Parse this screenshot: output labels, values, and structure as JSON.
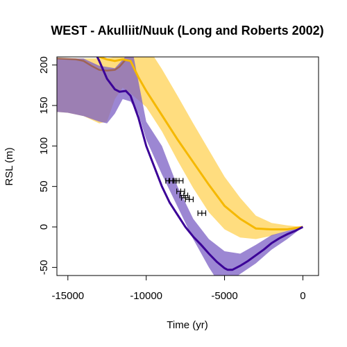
{
  "chart_data": {
    "type": "line",
    "title": "WEST - Akulliit/Nuuk (Long and Roberts 2002)",
    "xlabel": "Time (yr)",
    "ylabel": "RSL (m)",
    "xlim": [
      -15700,
      1000
    ],
    "ylim": [
      -60,
      210
    ],
    "x_ticks": [
      -15000,
      -10000,
      -5000,
      0
    ],
    "x_tick_labels": [
      "-15000",
      "-10000",
      "-5000",
      "0"
    ],
    "y_ticks": [
      -50,
      0,
      50,
      100,
      150,
      200
    ],
    "y_tick_labels": [
      "-50",
      "0",
      "50",
      "100",
      "150",
      "200"
    ],
    "grid": false,
    "legend": "none",
    "colors": {
      "purple_band": "#7b5fc4",
      "purple_line": "#3b0097",
      "yellow_band": "#ffc629",
      "yellow_line": "#f5b800",
      "overlap_band": "#9a6a8a",
      "overlap_line": "#a05c3c",
      "markers": "#000000"
    },
    "series": [
      {
        "role": "purple",
        "band_upper": [
          [
            -15700,
            208
          ],
          [
            -14000,
            208
          ],
          [
            -13000,
            199
          ],
          [
            -12000,
            196
          ],
          [
            -11200,
            213
          ],
          [
            -11000,
            230
          ],
          [
            -10000,
            130
          ],
          [
            -9000,
            100
          ],
          [
            -8000,
            50
          ],
          [
            -7000,
            10
          ],
          [
            -6000,
            -15
          ],
          [
            -5000,
            -30
          ],
          [
            -4000,
            -33
          ],
          [
            -3000,
            -22
          ],
          [
            -2000,
            -10
          ],
          [
            -1000,
            -5
          ],
          [
            0,
            0
          ]
        ],
        "band_lower": [
          [
            0,
            0
          ],
          [
            -1000,
            -15
          ],
          [
            -2000,
            -28
          ],
          [
            -3000,
            -45
          ],
          [
            -4000,
            -58
          ],
          [
            -4500,
            -65
          ],
          [
            -5000,
            -70
          ],
          [
            -5500,
            -65
          ],
          [
            -6000,
            -50
          ],
          [
            -7000,
            -15
          ],
          [
            -8000,
            25
          ],
          [
            -9000,
            65
          ],
          [
            -10000,
            108
          ],
          [
            -10500,
            140
          ],
          [
            -11000,
            155
          ],
          [
            -11500,
            158
          ],
          [
            -12000,
            140
          ],
          [
            -12500,
            128
          ],
          [
            -13000,
            130
          ],
          [
            -14000,
            137
          ],
          [
            -15000,
            141
          ],
          [
            -15700,
            142
          ]
        ],
        "line": [
          [
            -13500,
            225
          ],
          [
            -13000,
            205
          ],
          [
            -12500,
            183
          ],
          [
            -12000,
            170
          ],
          [
            -11700,
            167
          ],
          [
            -11300,
            168
          ],
          [
            -11000,
            162
          ],
          [
            -10500,
            135
          ],
          [
            -10000,
            100
          ],
          [
            -9500,
            75
          ],
          [
            -9000,
            50
          ],
          [
            -8500,
            30
          ],
          [
            -8000,
            15
          ],
          [
            -7500,
            0
          ],
          [
            -7000,
            -12
          ],
          [
            -6500,
            -22
          ],
          [
            -6000,
            -33
          ],
          [
            -5500,
            -43
          ],
          [
            -5000,
            -51
          ],
          [
            -4800,
            -53
          ],
          [
            -4500,
            -53
          ],
          [
            -4000,
            -48
          ],
          [
            -3500,
            -42
          ],
          [
            -3000,
            -35
          ],
          [
            -2500,
            -28
          ],
          [
            -2000,
            -20
          ],
          [
            -1500,
            -14
          ],
          [
            -1000,
            -9
          ],
          [
            -500,
            -5
          ],
          [
            0,
            0
          ]
        ]
      },
      {
        "role": "yellow",
        "band_upper": [
          [
            -15700,
            208
          ],
          [
            -15000,
            208
          ],
          [
            -14000,
            208
          ],
          [
            -12500,
            208
          ],
          [
            -11500,
            212
          ],
          [
            -10500,
            225
          ],
          [
            -9500,
            210
          ],
          [
            -9000,
            195
          ],
          [
            -8000,
            162
          ],
          [
            -7000,
            128
          ],
          [
            -6000,
            95
          ],
          [
            -5000,
            62
          ],
          [
            -4000,
            36
          ],
          [
            -3000,
            14
          ],
          [
            -2000,
            5
          ],
          [
            -1000,
            2
          ],
          [
            0,
            0
          ]
        ],
        "band_lower": [
          [
            0,
            0
          ],
          [
            -1000,
            -5
          ],
          [
            -2000,
            -11
          ],
          [
            -3000,
            -15
          ],
          [
            -4000,
            -13
          ],
          [
            -5000,
            -3
          ],
          [
            -6000,
            18
          ],
          [
            -7000,
            48
          ],
          [
            -8000,
            82
          ],
          [
            -9000,
            118
          ],
          [
            -10000,
            148
          ],
          [
            -11000,
            165
          ],
          [
            -11500,
            172
          ],
          [
            -12000,
            158
          ],
          [
            -12500,
            130
          ],
          [
            -13000,
            128
          ],
          [
            -14000,
            137
          ],
          [
            -15000,
            141
          ],
          [
            -15700,
            142
          ]
        ],
        "line": [
          [
            -13000,
            210
          ],
          [
            -12500,
            207
          ],
          [
            -12000,
            205
          ],
          [
            -11500,
            207
          ],
          [
            -11000,
            205
          ],
          [
            -10500,
            185
          ],
          [
            -10000,
            168
          ],
          [
            -9000,
            138
          ],
          [
            -8000,
            108
          ],
          [
            -7000,
            80
          ],
          [
            -6000,
            52
          ],
          [
            -5000,
            26
          ],
          [
            -4000,
            10
          ],
          [
            -3000,
            -2
          ],
          [
            -2000,
            -3
          ],
          [
            -1000,
            -3
          ],
          [
            0,
            0
          ]
        ]
      }
    ],
    "overlap_line": [
      [
        -15700,
        208
      ],
      [
        -14500,
        207
      ],
      [
        -14000,
        205
      ],
      [
        -13500,
        199
      ],
      [
        -13000,
        194
      ],
      [
        -12500,
        193
      ],
      [
        -12000,
        194
      ],
      [
        -11700,
        198
      ],
      [
        -11300,
        207
      ]
    ],
    "data_points": [
      {
        "x": -8500,
        "y": 57,
        "x_err": 250
      },
      {
        "x": -8300,
        "y": 57,
        "x_err": 250
      },
      {
        "x": -7900,
        "y": 57,
        "x_err": 250
      },
      {
        "x": -7800,
        "y": 44,
        "x_err": 250
      },
      {
        "x": -7600,
        "y": 39,
        "x_err": 250
      },
      {
        "x": -7500,
        "y": 36,
        "x_err": 250
      },
      {
        "x": -7250,
        "y": 34,
        "x_err": 250
      },
      {
        "x": -6450,
        "y": 17,
        "x_err": 250
      }
    ]
  }
}
